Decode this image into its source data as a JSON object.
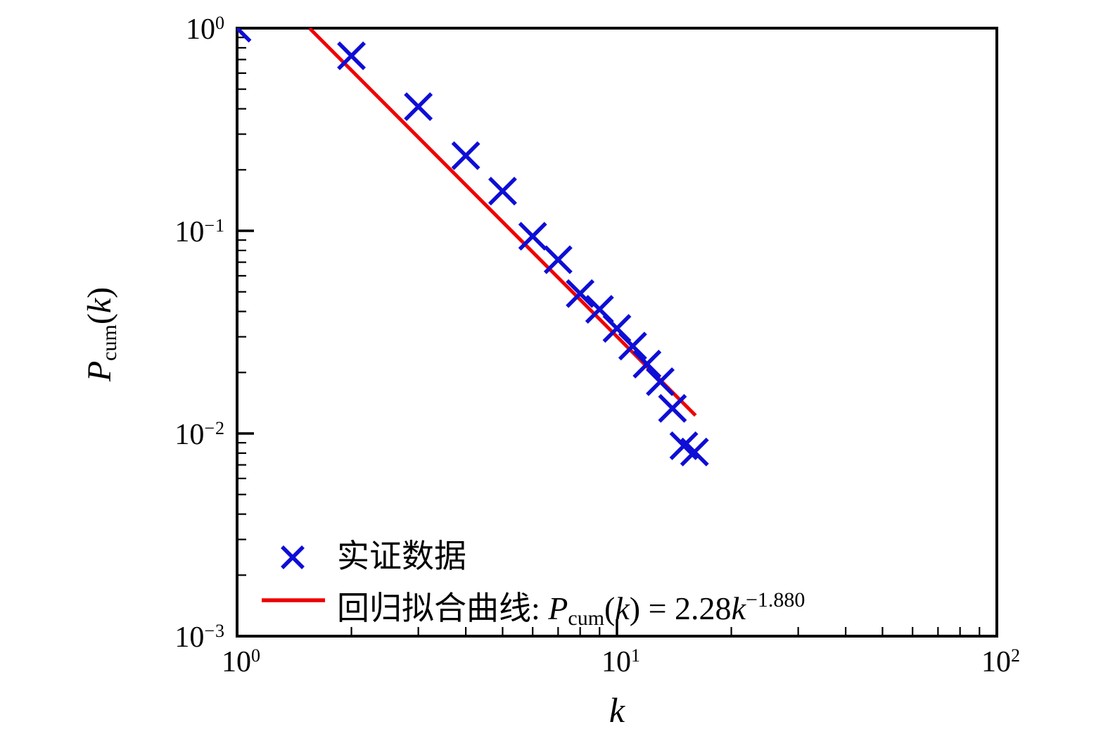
{
  "chart_data": {
    "type": "scatter",
    "x_scale": "log",
    "y_scale": "log",
    "xlim": [
      1,
      100
    ],
    "ylim": [
      0.001,
      1
    ],
    "xlabel": "k",
    "ylabel": "P_cum(k)",
    "grid": false,
    "legend_position": "lower-left-inside",
    "x_ticks": [
      {
        "value": 1,
        "base": "10",
        "exp": "0"
      },
      {
        "value": 10,
        "base": "10",
        "exp": "1"
      },
      {
        "value": 100,
        "base": "10",
        "exp": "2"
      }
    ],
    "y_ticks": [
      {
        "value": 1,
        "base": "10",
        "exp": "0"
      },
      {
        "value": 0.1,
        "base": "10",
        "exp": "−1"
      },
      {
        "value": 0.01,
        "base": "10",
        "exp": "−2"
      },
      {
        "value": 0.001,
        "base": "10",
        "exp": "−3"
      }
    ],
    "series": [
      {
        "name": "实证数据",
        "type": "scatter",
        "marker": "x",
        "color": "#0e0ed6",
        "x": [
          1,
          2,
          3,
          4,
          5,
          6,
          7,
          8,
          9,
          10,
          11,
          12,
          13,
          14,
          15,
          16
        ],
        "y": [
          1.0,
          0.73,
          0.41,
          0.235,
          0.157,
          0.094,
          0.072,
          0.049,
          0.041,
          0.033,
          0.027,
          0.022,
          0.018,
          0.0133,
          0.0087,
          0.0081
        ]
      },
      {
        "name": "回归拟合曲线: P_cum(k) = 2.28k^-1.880",
        "type": "line",
        "color": "#ee0000",
        "fit": {
          "coefficient": 2.28,
          "exponent": -1.88
        },
        "k_range": [
          1.552,
          16.1
        ]
      }
    ]
  },
  "axes": {
    "xlabel": "k",
    "ylabel_P": "P",
    "ylabel_sub": "cum",
    "ylabel_open": "(",
    "ylabel_k": "k",
    "ylabel_close": ")"
  },
  "legend": {
    "data_label": "实证数据",
    "fit_prefix": "回归拟合曲线: ",
    "eq_P": "P",
    "eq_sub": "cum",
    "eq_open": "(",
    "eq_k1": "k",
    "eq_mid": ") = 2.28",
    "eq_k2": "k",
    "eq_sup": "−1.880"
  },
  "colors": {
    "marker": "#0e0ed6",
    "fit_line": "#ee0000",
    "axis": "#000000",
    "background": "#ffffff"
  }
}
